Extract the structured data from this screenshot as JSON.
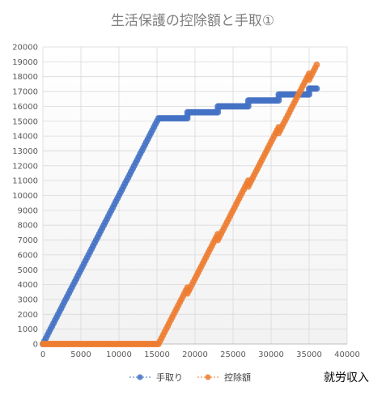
{
  "chart_data": {
    "type": "scatter",
    "title": "生活保護の控除額と手取①",
    "xlabel": "就労収入",
    "ylabel": "",
    "xlim": [
      0,
      40000
    ],
    "ylim": [
      0,
      20000
    ],
    "x_ticks": [
      "0",
      "5000",
      "10000",
      "15000",
      "20000",
      "25000",
      "30000",
      "35000",
      "40000"
    ],
    "y_ticks": [
      "0",
      "1000",
      "2000",
      "3000",
      "4000",
      "5000",
      "6000",
      "7000",
      "8000",
      "9000",
      "10000",
      "11000",
      "12000",
      "13000",
      "14000",
      "15000",
      "16000",
      "17000",
      "18000",
      "19000",
      "20000"
    ],
    "grid": true,
    "legend_position": "bottom",
    "colors": {
      "手取り": "#4472c4",
      "控除額": "#ed7d31"
    },
    "series": [
      {
        "name": "手取り",
        "points": [
          [
            0,
            0
          ],
          [
            15200,
            15200
          ],
          [
            19000,
            15200
          ],
          [
            19000,
            15600
          ],
          [
            23000,
            15600
          ],
          [
            23000,
            16000
          ],
          [
            27000,
            16000
          ],
          [
            27000,
            16400
          ],
          [
            31000,
            16400
          ],
          [
            31000,
            16800
          ],
          [
            35000,
            16800
          ],
          [
            35000,
            17200
          ],
          [
            36000,
            17200
          ]
        ]
      },
      {
        "name": "控除額",
        "points": [
          [
            0,
            0
          ],
          [
            15200,
            0
          ],
          [
            19000,
            3800
          ],
          [
            19000,
            3400
          ],
          [
            23000,
            7400
          ],
          [
            23000,
            7000
          ],
          [
            27000,
            11000
          ],
          [
            27000,
            10600
          ],
          [
            31000,
            14600
          ],
          [
            31000,
            14200
          ],
          [
            35000,
            18200
          ],
          [
            35000,
            17800
          ],
          [
            36000,
            18800
          ]
        ]
      }
    ]
  }
}
